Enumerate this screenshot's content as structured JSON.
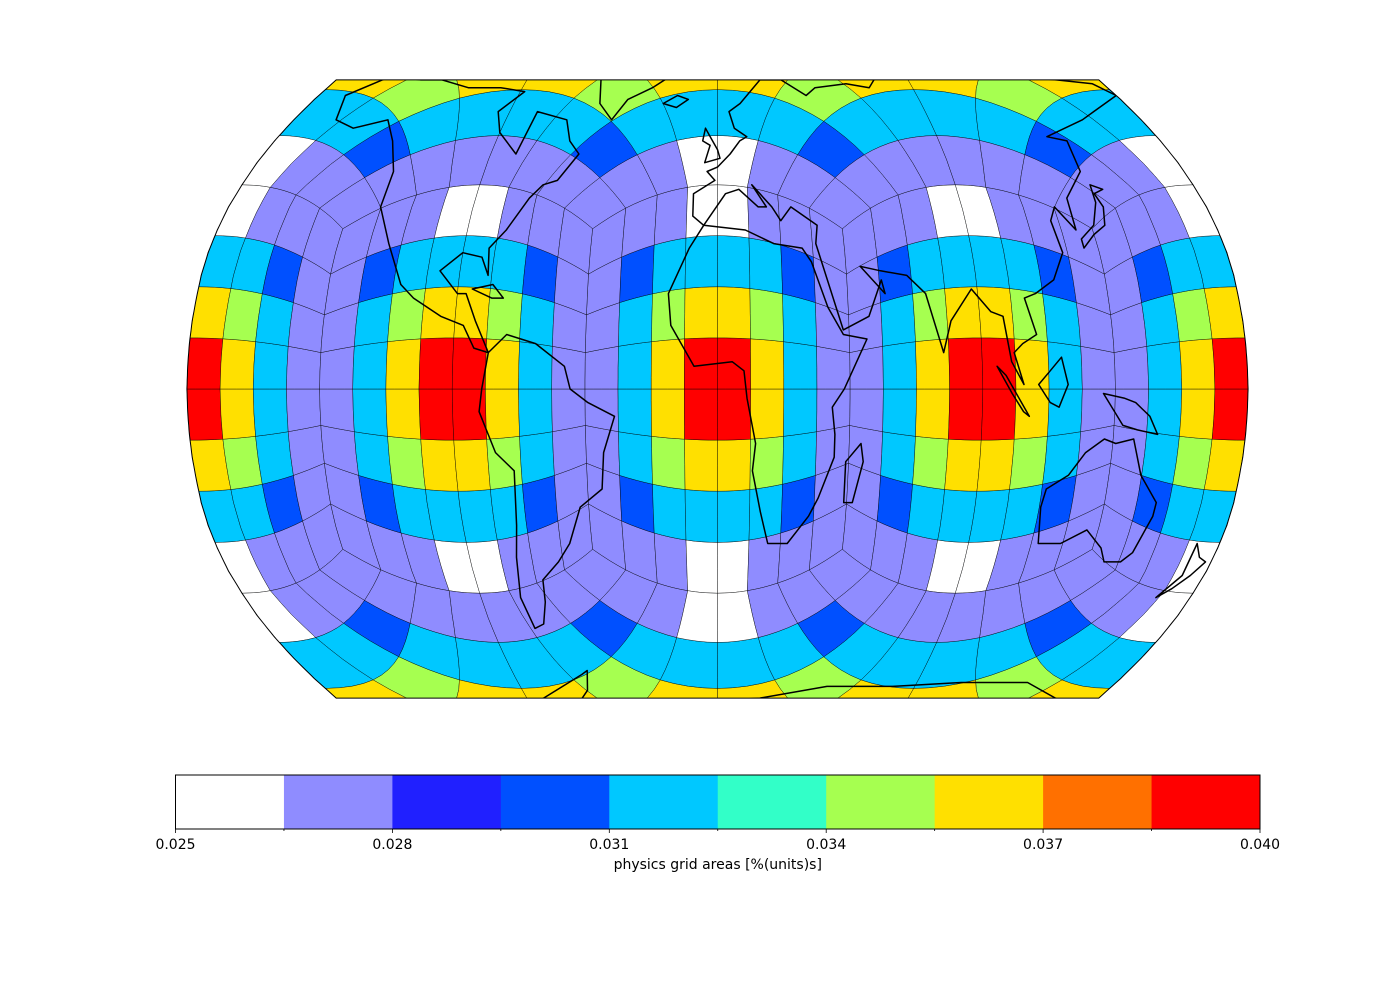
{
  "figure": {
    "colorbar_label": "physics grid areas [%(units)s]"
  },
  "colorbar": {
    "min": 0.025,
    "max": 0.04,
    "colors": [
      "#ffffff",
      "#8f8cff",
      "#2020ff",
      "#0050ff",
      "#00c8ff",
      "#32ffc8",
      "#a6ff50",
      "#ffe000",
      "#ff7000",
      "#ff0000"
    ],
    "major_ticks": [
      {
        "value": 0.025,
        "label": "0.025"
      },
      {
        "value": 0.028,
        "label": "0.028"
      },
      {
        "value": 0.031,
        "label": "0.031"
      },
      {
        "value": 0.034,
        "label": "0.034"
      },
      {
        "value": 0.037,
        "label": "0.037"
      },
      {
        "value": 0.04,
        "label": "0.040"
      }
    ]
  },
  "map": {
    "projection": "robinson",
    "central_longitude": 0,
    "latitude_limits": [
      -70,
      70
    ],
    "grid": "cubed-sphere physics grid, 8 cells per face edge",
    "ocean_color": "#7fb0d6",
    "ice_color": "#eef0f4",
    "land_color": "#d9c9a0"
  }
}
